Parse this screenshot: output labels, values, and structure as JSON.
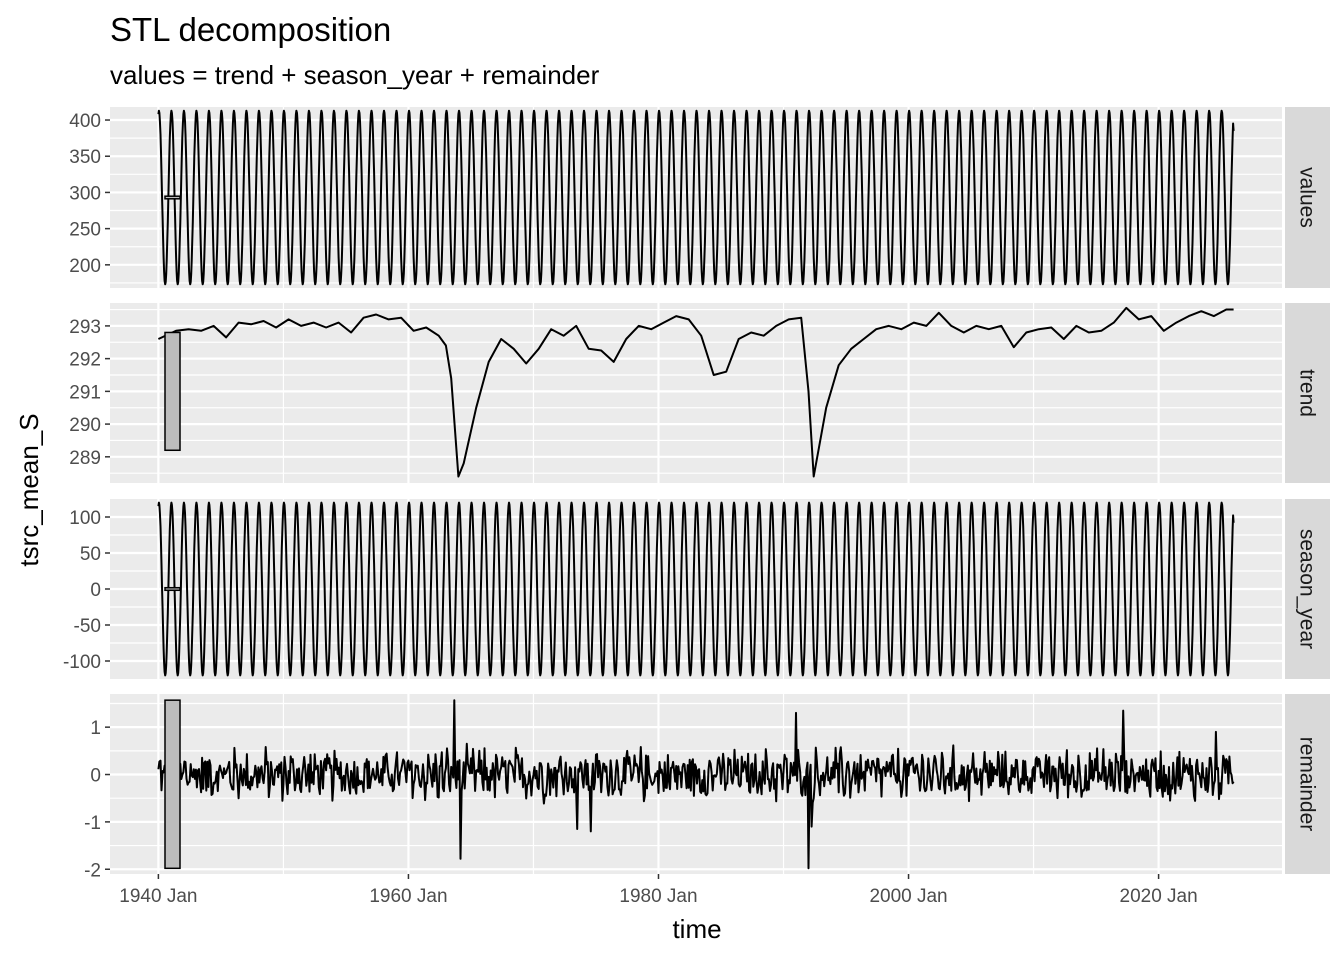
{
  "chart_data": {
    "type": "line",
    "title": "STL decomposition",
    "subtitle": "values = trend + season_year + remainder",
    "xlabel": "time",
    "ylabel": "tsrc_mean_S",
    "x_range": [
      "1940-01",
      "2026-01"
    ],
    "x_ticks": [
      {
        "date": "1940-01",
        "label": "1940 Jan"
      },
      {
        "date": "1960-01",
        "label": "1960 Jan"
      },
      {
        "date": "1980-01",
        "label": "1980 Jan"
      },
      {
        "date": "2000-01",
        "label": "2000 Jan"
      },
      {
        "date": "2020-01",
        "label": "2020 Jan"
      }
    ],
    "grid": true,
    "panels": [
      {
        "name": "values",
        "ylim": [
          168,
          418
        ],
        "y_ticks": [
          {
            "v": 200,
            "label": "200"
          },
          {
            "v": 250,
            "label": "250"
          },
          {
            "v": 300,
            "label": "300"
          },
          {
            "v": 350,
            "label": "350"
          },
          {
            "v": 400,
            "label": "400"
          }
        ],
        "seasonal_mean": 293,
        "seasonal_amplitude": 120,
        "start_value": 408,
        "end_value": 385,
        "scale_bar": [
          291.2,
          294.8
        ]
      },
      {
        "name": "trend",
        "ylim": [
          288.2,
          293.7
        ],
        "y_ticks": [
          {
            "v": 289,
            "label": "289"
          },
          {
            "v": 290,
            "label": "290"
          },
          {
            "v": 291,
            "label": "291"
          },
          {
            "v": 292,
            "label": "292"
          },
          {
            "v": 293,
            "label": "293"
          }
        ],
        "scale_bar": [
          289.2,
          292.8
        ],
        "points": [
          [
            "1940-01",
            292.6
          ],
          [
            "1941-06",
            292.85
          ],
          [
            "1942-06",
            292.9
          ],
          [
            "1943-06",
            292.85
          ],
          [
            "1944-06",
            293.0
          ],
          [
            "1945-06",
            292.65
          ],
          [
            "1946-06",
            293.1
          ],
          [
            "1947-06",
            293.05
          ],
          [
            "1948-06",
            293.15
          ],
          [
            "1949-06",
            292.95
          ],
          [
            "1950-06",
            293.2
          ],
          [
            "1951-06",
            293.0
          ],
          [
            "1952-06",
            293.1
          ],
          [
            "1953-06",
            292.95
          ],
          [
            "1954-06",
            293.1
          ],
          [
            "1955-06",
            292.8
          ],
          [
            "1956-06",
            293.25
          ],
          [
            "1957-06",
            293.35
          ],
          [
            "1958-06",
            293.2
          ],
          [
            "1959-06",
            293.25
          ],
          [
            "1960-06",
            292.85
          ],
          [
            "1961-06",
            292.95
          ],
          [
            "1962-06",
            292.7
          ],
          [
            "1963-01",
            292.4
          ],
          [
            "1963-06",
            291.4
          ],
          [
            "1964-01",
            288.4
          ],
          [
            "1964-06",
            288.8
          ],
          [
            "1965-06",
            290.5
          ],
          [
            "1966-06",
            291.9
          ],
          [
            "1967-06",
            292.6
          ],
          [
            "1968-06",
            292.3
          ],
          [
            "1969-06",
            291.85
          ],
          [
            "1970-06",
            292.3
          ],
          [
            "1971-06",
            292.9
          ],
          [
            "1972-06",
            292.7
          ],
          [
            "1973-06",
            293.0
          ],
          [
            "1974-06",
            292.3
          ],
          [
            "1975-06",
            292.25
          ],
          [
            "1976-06",
            291.9
          ],
          [
            "1977-06",
            292.6
          ],
          [
            "1978-06",
            293.0
          ],
          [
            "1979-06",
            292.9
          ],
          [
            "1980-06",
            293.1
          ],
          [
            "1981-06",
            293.3
          ],
          [
            "1982-06",
            293.2
          ],
          [
            "1983-06",
            292.7
          ],
          [
            "1984-06",
            291.5
          ],
          [
            "1985-06",
            291.6
          ],
          [
            "1986-06",
            292.6
          ],
          [
            "1987-06",
            292.8
          ],
          [
            "1988-06",
            292.7
          ],
          [
            "1989-06",
            293.0
          ],
          [
            "1990-06",
            293.2
          ],
          [
            "1991-06",
            293.25
          ],
          [
            "1992-01",
            291.0
          ],
          [
            "1992-06",
            288.4
          ],
          [
            "1993-06",
            290.5
          ],
          [
            "1994-06",
            291.8
          ],
          [
            "1995-06",
            292.3
          ],
          [
            "1996-06",
            292.6
          ],
          [
            "1997-06",
            292.9
          ],
          [
            "1998-06",
            293.0
          ],
          [
            "1999-06",
            292.9
          ],
          [
            "2000-06",
            293.1
          ],
          [
            "2001-06",
            293.0
          ],
          [
            "2002-06",
            293.4
          ],
          [
            "2003-06",
            293.0
          ],
          [
            "2004-06",
            292.8
          ],
          [
            "2005-06",
            293.0
          ],
          [
            "2006-06",
            292.9
          ],
          [
            "2007-06",
            293.0
          ],
          [
            "2008-06",
            292.35
          ],
          [
            "2009-06",
            292.8
          ],
          [
            "2010-06",
            292.9
          ],
          [
            "2011-06",
            292.95
          ],
          [
            "2012-06",
            292.6
          ],
          [
            "2013-06",
            293.0
          ],
          [
            "2014-06",
            292.8
          ],
          [
            "2015-06",
            292.85
          ],
          [
            "2016-06",
            293.1
          ],
          [
            "2017-06",
            293.55
          ],
          [
            "2018-06",
            293.2
          ],
          [
            "2019-06",
            293.3
          ],
          [
            "2020-06",
            292.85
          ],
          [
            "2021-06",
            293.1
          ],
          [
            "2022-06",
            293.3
          ],
          [
            "2023-06",
            293.45
          ],
          [
            "2024-06",
            293.3
          ],
          [
            "2025-06",
            293.5
          ],
          [
            "2026-01",
            293.5
          ]
        ]
      },
      {
        "name": "season_year",
        "ylim": [
          -125,
          125
        ],
        "y_ticks": [
          {
            "v": -100,
            "label": "-100"
          },
          {
            "v": -50,
            "label": "-50"
          },
          {
            "v": 0,
            "label": "0"
          },
          {
            "v": 50,
            "label": "50"
          },
          {
            "v": 100,
            "label": "100"
          }
        ],
        "seasonal_mean": 0,
        "seasonal_amplitude": 120,
        "start_value": 115,
        "end_value": 92,
        "scale_bar": [
          -1.8,
          1.8
        ]
      },
      {
        "name": "remainder",
        "ylim": [
          -2.1,
          1.7
        ],
        "y_ticks": [
          {
            "v": -2,
            "label": "-2"
          },
          {
            "v": -1,
            "label": "-1"
          },
          {
            "v": 0,
            "label": "0"
          },
          {
            "v": 1,
            "label": "1"
          }
        ],
        "scale_bar": [
          -1.98,
          1.57
        ],
        "noise_amplitude": 0.45,
        "spikes": [
          [
            "1963-09",
            1.57
          ],
          [
            "1964-03",
            -1.78
          ],
          [
            "1991-01",
            1.3
          ],
          [
            "1992-01",
            -1.98
          ],
          [
            "1992-04",
            -1.1
          ],
          [
            "1973-07",
            -1.15
          ],
          [
            "1974-08",
            -1.2
          ],
          [
            "2017-03",
            1.35
          ],
          [
            "2024-08",
            0.9
          ]
        ]
      }
    ]
  }
}
